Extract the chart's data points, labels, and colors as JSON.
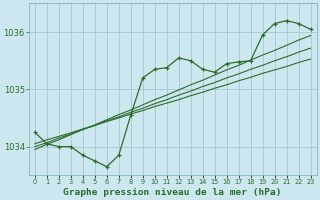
{
  "title": "Graphe pression niveau de la mer (hPa)",
  "background_color": "#cce8ee",
  "grid_color": "#99c4cc",
  "line_color": "#2d6b2d",
  "hours": [
    0,
    1,
    2,
    3,
    4,
    5,
    6,
    7,
    8,
    9,
    10,
    11,
    12,
    13,
    14,
    15,
    16,
    17,
    18,
    19,
    20,
    21,
    22,
    23
  ],
  "line_zigzag": [
    1034.25,
    1034.05,
    1034.0,
    1034.0,
    1033.85,
    1033.75,
    1033.65,
    1033.85,
    1034.55,
    1035.2,
    1035.35,
    1035.38,
    1035.55,
    1035.5,
    1035.35,
    1035.3,
    1035.45,
    1035.48,
    1035.5,
    1035.95,
    1036.15,
    1036.2,
    1036.15,
    1036.05
  ],
  "line_smooth1": [
    1034.05,
    1034.12,
    1034.18,
    1034.24,
    1034.31,
    1034.37,
    1034.44,
    1034.5,
    1034.57,
    1034.63,
    1034.7,
    1034.76,
    1034.82,
    1034.89,
    1034.95,
    1035.02,
    1035.08,
    1035.15,
    1035.21,
    1035.28,
    1035.34,
    1035.4,
    1035.47,
    1035.53
  ],
  "line_smooth2": [
    1034.0,
    1034.07,
    1034.15,
    1034.22,
    1034.3,
    1034.37,
    1034.45,
    1034.52,
    1034.6,
    1034.67,
    1034.75,
    1034.82,
    1034.9,
    1034.97,
    1035.05,
    1035.12,
    1035.2,
    1035.27,
    1035.35,
    1035.42,
    1035.5,
    1035.57,
    1035.65,
    1035.72
  ],
  "line_smooth3": [
    1033.95,
    1034.04,
    1034.12,
    1034.21,
    1034.3,
    1034.38,
    1034.47,
    1034.56,
    1034.64,
    1034.73,
    1034.82,
    1034.9,
    1034.99,
    1035.08,
    1035.16,
    1035.25,
    1035.34,
    1035.42,
    1035.51,
    1035.6,
    1035.68,
    1035.77,
    1035.86,
    1035.94
  ],
  "ylim": [
    1033.5,
    1036.5
  ],
  "yticks": [
    1034,
    1035,
    1036
  ],
  "xlim": [
    -0.5,
    23.5
  ]
}
